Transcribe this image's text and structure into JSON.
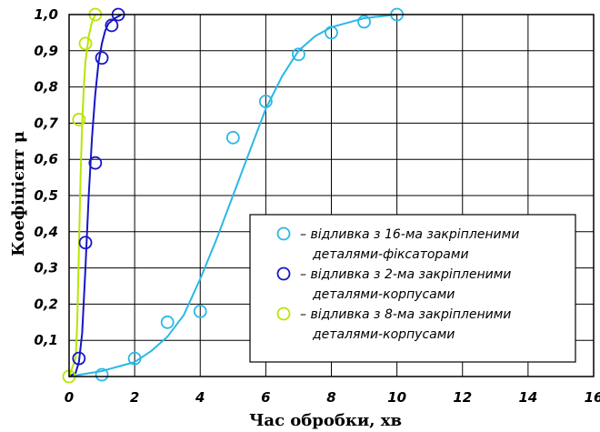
{
  "chart_data": {
    "type": "scatter",
    "xlabel": "Час обробки, хв",
    "ylabel": "Коефіцієнт μ",
    "xlim": [
      0,
      16
    ],
    "ylim": [
      0,
      1.0
    ],
    "grid": true,
    "legend_position": "lower-right",
    "x_ticks": [
      "0",
      "2",
      "4",
      "6",
      "8",
      "10",
      "12",
      "14",
      "16"
    ],
    "y_ticks": [
      "0,1",
      "0,2",
      "0,3",
      "0,4",
      "0,5",
      "0,6",
      "0,7",
      "0,8",
      "0,9",
      "1,0"
    ],
    "series": [
      {
        "name": "– відливка з 16-ма закріпленими деталями-фіксаторами",
        "legend_lines": [
          "– відливка з 16-ма закріпленими",
          "деталями-фіксаторами"
        ],
        "color": "#2ab8e6",
        "x": [
          1,
          2,
          3,
          4,
          5,
          6,
          7,
          8,
          9,
          10
        ],
        "y": [
          0.005,
          0.05,
          0.15,
          0.18,
          0.66,
          0.76,
          0.89,
          0.95,
          0.98,
          1.0
        ],
        "curve_x": [
          0.0,
          1.0,
          2.0,
          2.5,
          3.0,
          3.5,
          4.0,
          4.5,
          5.0,
          5.5,
          6.0,
          6.5,
          7.0,
          7.5,
          8.0,
          9.0,
          10.0
        ],
        "curve_y": [
          0.0,
          0.015,
          0.04,
          0.07,
          0.11,
          0.17,
          0.27,
          0.38,
          0.5,
          0.62,
          0.74,
          0.83,
          0.9,
          0.94,
          0.965,
          0.99,
          1.0
        ]
      },
      {
        "name": "– відливка з 2-ма закріпленими деталями-корпусами",
        "legend_lines": [
          "– відливка з 2-ма закріпленими",
          "деталями-корпусами"
        ],
        "color": "#1616c8",
        "x": [
          0.3,
          0.5,
          0.8,
          1.0,
          1.3,
          1.5
        ],
        "y": [
          0.05,
          0.37,
          0.59,
          0.88,
          0.97,
          1.0
        ],
        "curve_x": [
          0.0,
          0.2,
          0.3,
          0.4,
          0.5,
          0.6,
          0.7,
          0.8,
          0.9,
          1.0,
          1.1,
          1.2,
          1.4,
          1.6
        ],
        "curve_y": [
          0.0,
          0.01,
          0.04,
          0.12,
          0.3,
          0.5,
          0.66,
          0.78,
          0.87,
          0.92,
          0.955,
          0.975,
          0.99,
          1.0
        ]
      },
      {
        "name": "– відливка з 8-ма закріпленими деталями-корпусами",
        "legend_lines": [
          "– відливка з 8-ма закріпленими",
          "деталями-корпусами"
        ],
        "color": "#b8e600",
        "x": [
          0,
          0.3,
          0.5,
          0.8
        ],
        "y": [
          0.0,
          0.71,
          0.92,
          1.0
        ],
        "curve_x": [
          0.0,
          0.2,
          0.25,
          0.3,
          0.35,
          0.4,
          0.45,
          0.5,
          0.6,
          0.7,
          0.8
        ],
        "curve_y": [
          0.0,
          0.05,
          0.15,
          0.35,
          0.55,
          0.7,
          0.8,
          0.87,
          0.94,
          0.98,
          1.0
        ]
      }
    ]
  }
}
